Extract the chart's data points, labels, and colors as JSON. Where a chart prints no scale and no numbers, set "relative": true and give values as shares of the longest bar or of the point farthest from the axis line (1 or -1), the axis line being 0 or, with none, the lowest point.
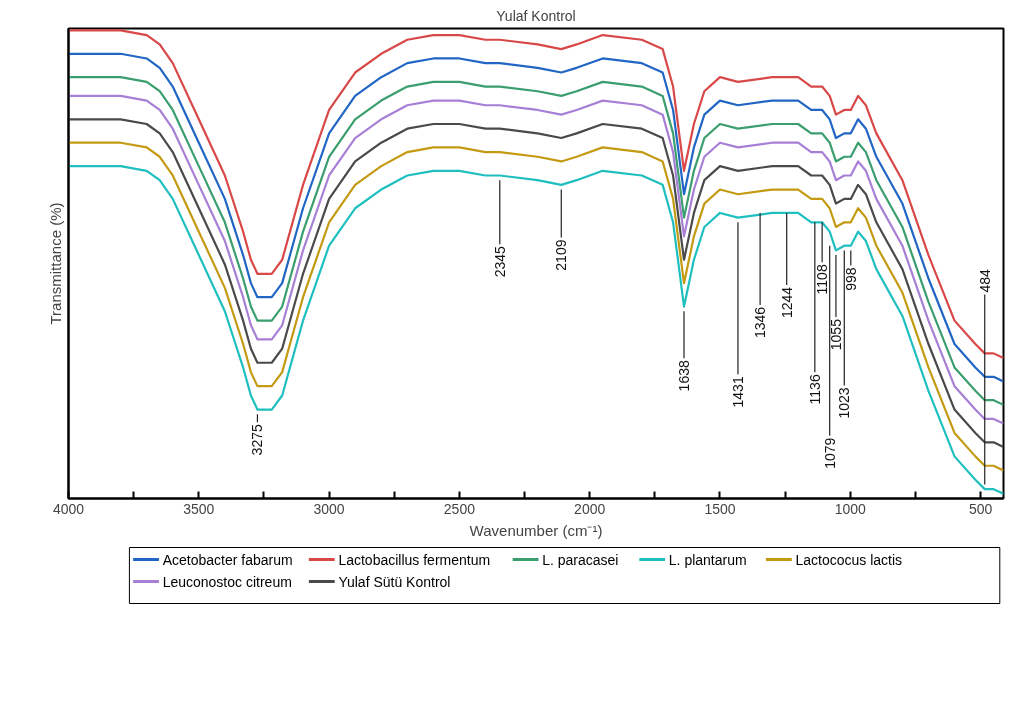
{
  "chart_data": {
    "type": "line",
    "title": "Yulaf Kontrol",
    "xlabel": "Wavenumber (cm⁻¹)",
    "ylabel": "Transmittance (%)",
    "relative": true,
    "x": [
      4000,
      3800,
      3700,
      3650,
      3600,
      3500,
      3400,
      3330,
      3300,
      3275,
      3220,
      3180,
      3100,
      3000,
      2900,
      2800,
      2700,
      2600,
      2500,
      2400,
      2345,
      2200,
      2109,
      2050,
      1950,
      1800,
      1720,
      1680,
      1638,
      1600,
      1560,
      1500,
      1431,
      1300,
      1200,
      1150,
      1108,
      1079,
      1055,
      1023,
      998,
      970,
      940,
      900,
      800,
      700,
      600,
      520,
      484,
      450,
      412
    ],
    "xlim": [
      4000,
      412
    ],
    "xticks": [
      4000,
      {
        "value": 3750,
        "label": null
      },
      3500,
      {
        "value": 3250,
        "label": null
      },
      3000,
      {
        "value": 2750,
        "label": null
      },
      2500,
      {
        "value": 2250,
        "label": null
      },
      2000,
      {
        "value": 1750,
        "label": null
      },
      1500,
      {
        "value": 1250,
        "label": null
      },
      1000,
      {
        "value": 750,
        "label": null
      },
      500
    ],
    "series": [
      {
        "name": "Acetobacter fabarum",
        "color": "#2166c4",
        "values": [
          0.95,
          0.95,
          0.94,
          0.92,
          0.88,
          0.76,
          0.64,
          0.52,
          0.46,
          0.43,
          0.43,
          0.46,
          0.62,
          0.78,
          0.86,
          0.9,
          0.93,
          0.94,
          0.94,
          0.93,
          0.93,
          0.92,
          0.91,
          0.92,
          0.94,
          0.93,
          0.91,
          0.83,
          0.65,
          0.75,
          0.82,
          0.85,
          0.84,
          0.85,
          0.85,
          0.83,
          0.83,
          0.81,
          0.77,
          0.78,
          0.78,
          0.81,
          0.79,
          0.73,
          0.63,
          0.47,
          0.33,
          0.28,
          0.26,
          0.26,
          0.25
        ]
      },
      {
        "name": "Lactobacillus fermentum",
        "color": "#d94848",
        "values": [
          1.0,
          1.0,
          0.99,
          0.97,
          0.93,
          0.81,
          0.69,
          0.57,
          0.51,
          0.48,
          0.48,
          0.51,
          0.67,
          0.83,
          0.91,
          0.95,
          0.98,
          0.99,
          0.99,
          0.98,
          0.98,
          0.97,
          0.96,
          0.97,
          0.99,
          0.98,
          0.96,
          0.88,
          0.7,
          0.8,
          0.87,
          0.9,
          0.89,
          0.9,
          0.9,
          0.88,
          0.88,
          0.86,
          0.82,
          0.83,
          0.83,
          0.86,
          0.84,
          0.78,
          0.68,
          0.52,
          0.38,
          0.33,
          0.31,
          0.31,
          0.3
        ]
      },
      {
        "name": "L. paracasei",
        "color": "#3a9e6e",
        "values": [
          0.9,
          0.9,
          0.89,
          0.87,
          0.83,
          0.71,
          0.59,
          0.47,
          0.41,
          0.38,
          0.38,
          0.41,
          0.57,
          0.73,
          0.81,
          0.85,
          0.88,
          0.89,
          0.89,
          0.88,
          0.88,
          0.87,
          0.86,
          0.87,
          0.89,
          0.88,
          0.86,
          0.78,
          0.6,
          0.7,
          0.77,
          0.8,
          0.79,
          0.8,
          0.8,
          0.78,
          0.78,
          0.76,
          0.72,
          0.73,
          0.73,
          0.76,
          0.74,
          0.68,
          0.58,
          0.42,
          0.28,
          0.23,
          0.21,
          0.21,
          0.2
        ]
      },
      {
        "name": "L. plantarum",
        "color": "#1fbfbf",
        "values": [
          0.71,
          0.71,
          0.7,
          0.68,
          0.64,
          0.52,
          0.4,
          0.28,
          0.22,
          0.19,
          0.19,
          0.22,
          0.38,
          0.54,
          0.62,
          0.66,
          0.69,
          0.7,
          0.7,
          0.69,
          0.69,
          0.68,
          0.67,
          0.68,
          0.7,
          0.69,
          0.67,
          0.59,
          0.41,
          0.51,
          0.58,
          0.61,
          0.6,
          0.61,
          0.61,
          0.59,
          0.59,
          0.57,
          0.53,
          0.54,
          0.54,
          0.57,
          0.55,
          0.49,
          0.39,
          0.23,
          0.09,
          0.04,
          0.02,
          0.02,
          0.01
        ]
      },
      {
        "name": "Lactococus lactis",
        "color": "#c49a12",
        "values": [
          0.76,
          0.76,
          0.75,
          0.73,
          0.69,
          0.57,
          0.45,
          0.33,
          0.27,
          0.24,
          0.24,
          0.27,
          0.43,
          0.59,
          0.67,
          0.71,
          0.74,
          0.75,
          0.75,
          0.74,
          0.74,
          0.73,
          0.72,
          0.73,
          0.75,
          0.74,
          0.72,
          0.64,
          0.46,
          0.56,
          0.63,
          0.66,
          0.65,
          0.66,
          0.66,
          0.64,
          0.64,
          0.62,
          0.58,
          0.59,
          0.59,
          0.62,
          0.6,
          0.54,
          0.44,
          0.28,
          0.14,
          0.09,
          0.07,
          0.07,
          0.06
        ]
      },
      {
        "name": "Leuconostoc citreum",
        "color": "#a77fd6",
        "values": [
          0.86,
          0.86,
          0.85,
          0.83,
          0.79,
          0.67,
          0.55,
          0.43,
          0.37,
          0.34,
          0.34,
          0.37,
          0.53,
          0.69,
          0.77,
          0.81,
          0.84,
          0.85,
          0.85,
          0.84,
          0.84,
          0.83,
          0.82,
          0.83,
          0.85,
          0.84,
          0.82,
          0.74,
          0.56,
          0.66,
          0.73,
          0.76,
          0.75,
          0.76,
          0.76,
          0.74,
          0.74,
          0.72,
          0.68,
          0.69,
          0.69,
          0.72,
          0.7,
          0.64,
          0.54,
          0.38,
          0.24,
          0.19,
          0.17,
          0.17,
          0.16
        ]
      },
      {
        "name": "Yulaf Sütü Kontrol",
        "color": "#4a4a4a",
        "values": [
          0.81,
          0.81,
          0.8,
          0.78,
          0.74,
          0.62,
          0.5,
          0.38,
          0.32,
          0.29,
          0.29,
          0.32,
          0.48,
          0.64,
          0.72,
          0.76,
          0.79,
          0.8,
          0.8,
          0.79,
          0.79,
          0.78,
          0.77,
          0.78,
          0.8,
          0.79,
          0.77,
          0.69,
          0.51,
          0.61,
          0.68,
          0.71,
          0.7,
          0.71,
          0.71,
          0.69,
          0.69,
          0.67,
          0.63,
          0.64,
          0.64,
          0.67,
          0.65,
          0.59,
          0.49,
          0.33,
          0.19,
          0.14,
          0.12,
          0.12,
          0.11
        ]
      }
    ],
    "annotations": [
      {
        "text": "3275",
        "x": 3275,
        "y": 0.18
      },
      {
        "text": "2345",
        "x": 2345,
        "y": 0.68
      },
      {
        "text": "2109",
        "x": 2109,
        "y": 0.66
      },
      {
        "text": "1638",
        "x": 1638,
        "y": 0.4
      },
      {
        "text": "1431",
        "x": 1431,
        "y": 0.59
      },
      {
        "text": "1346",
        "x": 1346,
        "y": 0.61
      },
      {
        "text": "1244",
        "x": 1244,
        "y": 0.61
      },
      {
        "text": "1136",
        "x": 1136,
        "y": 0.59
      },
      {
        "text": "1108",
        "x": 1108,
        "y": 0.59
      },
      {
        "text": "1079",
        "x": 1079,
        "y": 0.54
      },
      {
        "text": "1055",
        "x": 1055,
        "y": 0.52
      },
      {
        "text": "1023",
        "x": 1023,
        "y": 0.53
      },
      {
        "text": "998",
        "x": 998,
        "y": 0.53
      },
      {
        "text": "484",
        "x": 484,
        "y": 0.03
      }
    ],
    "legend": "bottom",
    "grid": false,
    "marker": "none",
    "line_style": "solid"
  }
}
